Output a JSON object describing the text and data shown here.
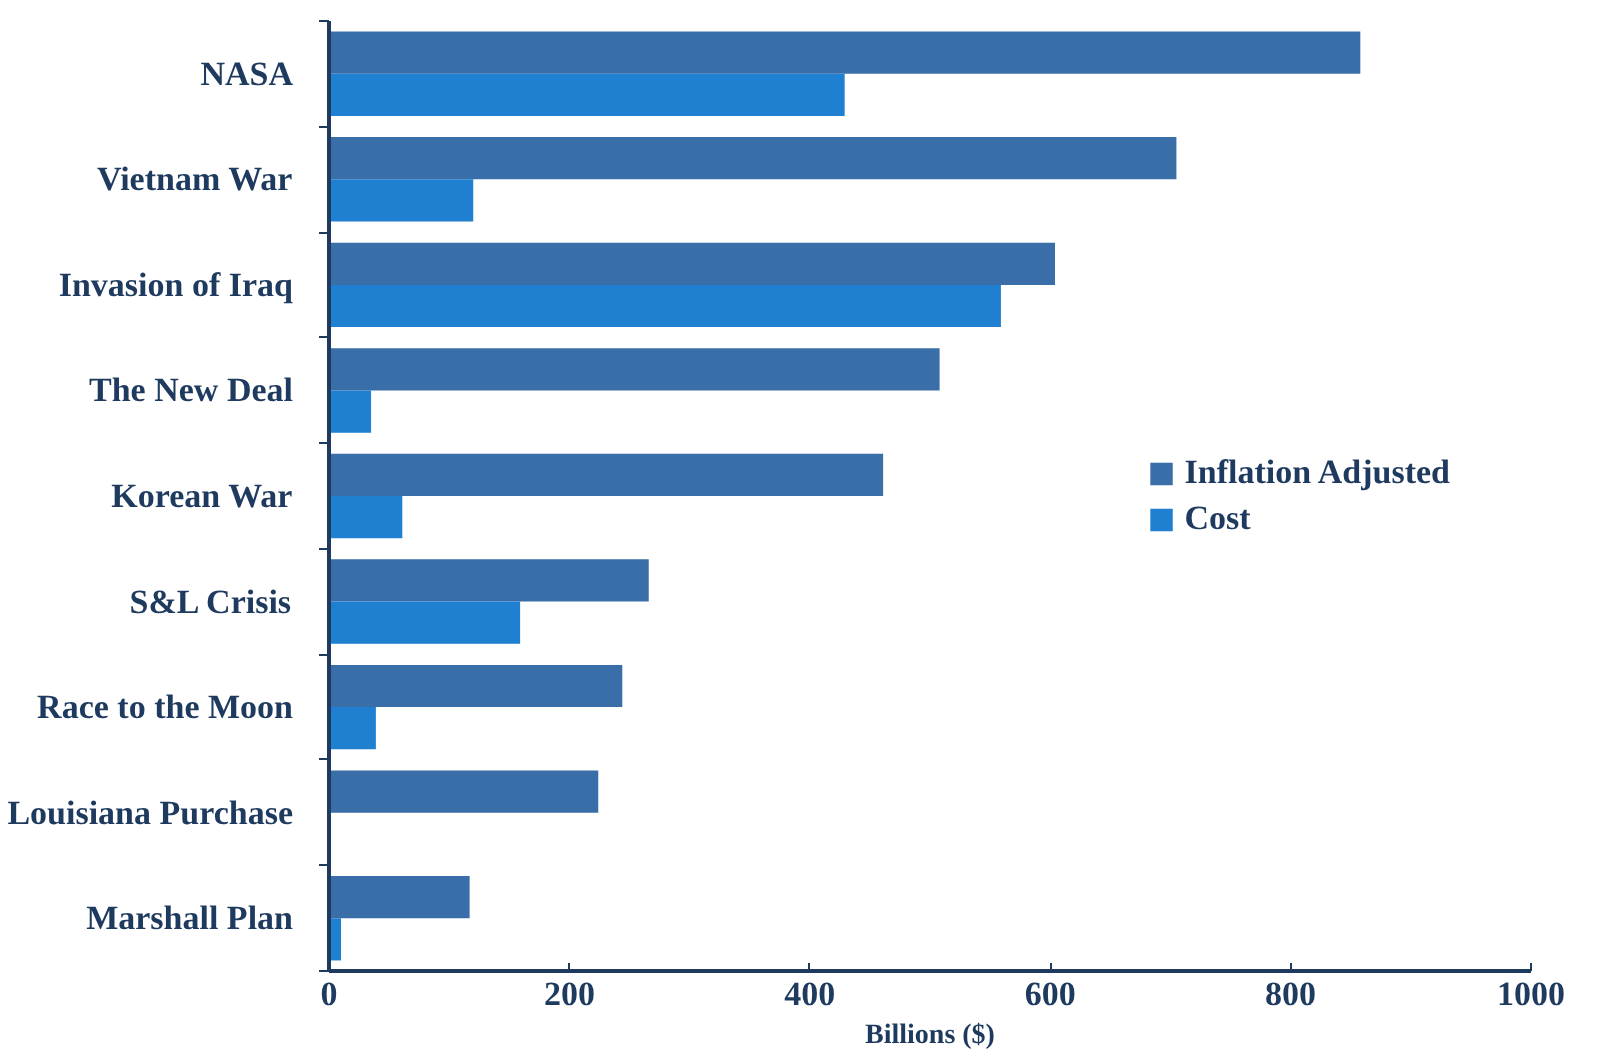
{
  "chart_data": {
    "type": "bar",
    "orientation": "horizontal",
    "xlabel": "Billions ($)",
    "categories": [
      "NASA",
      "Vietnam War",
      "Invasion of Iraq",
      "The New Deal",
      "Korean War",
      "S&L Crisis",
      "Race to the Moon",
      "Louisiana Purchase",
      "Marshall Plan"
    ],
    "series": [
      {
        "name": "Inflation Adjusted",
        "color": "#3a6ea8",
        "values": [
          858,
          705,
          604,
          508,
          461,
          266,
          244,
          224,
          117
        ]
      },
      {
        "name": "Cost",
        "color": "#1f7fd0",
        "values": [
          429,
          120,
          559,
          35,
          61,
          159,
          39,
          null,
          10
        ]
      }
    ],
    "xlim": [
      0,
      1000
    ],
    "xticks": [
      0,
      200,
      400,
      600,
      800,
      1000
    ],
    "grid": false,
    "legend": "right"
  }
}
